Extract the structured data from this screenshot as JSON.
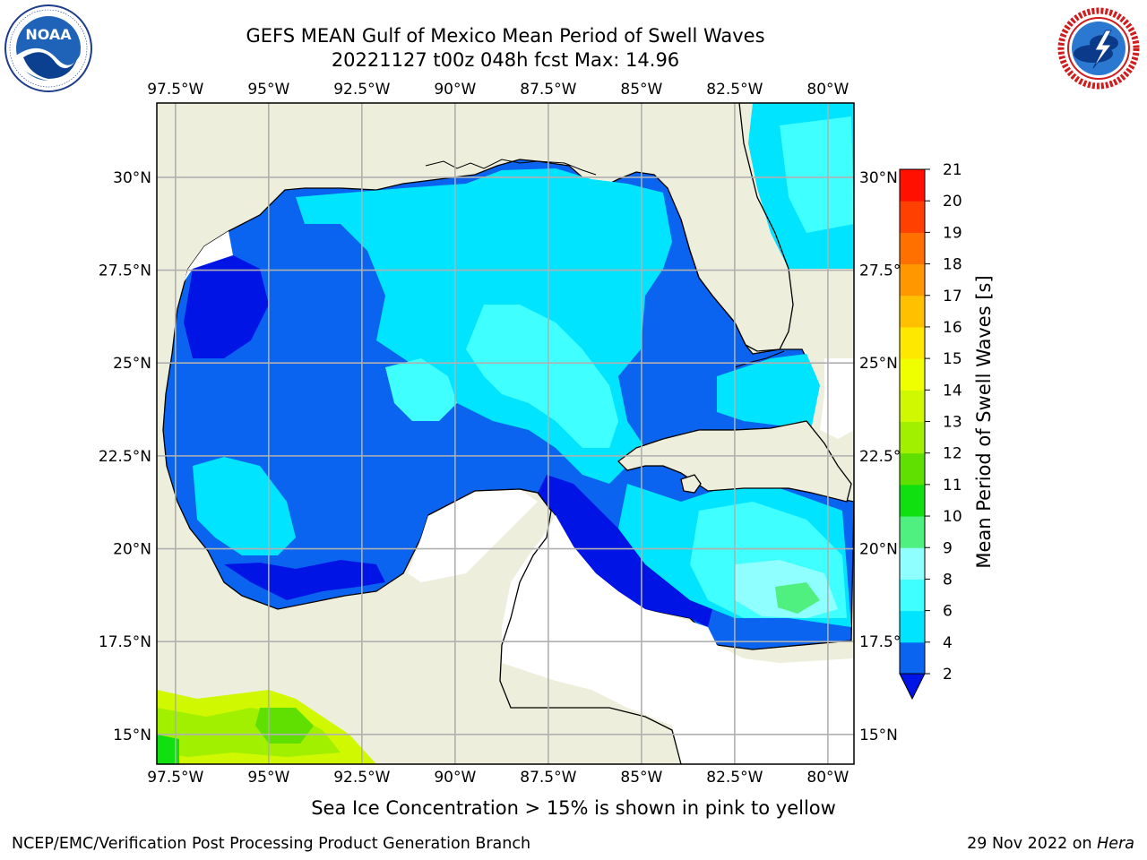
{
  "header": {
    "title_line1": "GEFS MEAN Gulf of Mexico Mean Period of Swell Waves",
    "title_line2": "20221127 t00z 048h fcst   Max: 14.96"
  },
  "logos": {
    "left": {
      "name": "noaa-logo",
      "text": "NOAA",
      "ring_text": "NATIONAL OCEANIC AND ATMOSPHERIC ADMINISTRATION · U.S. DEPARTMENT OF COMMERCE"
    },
    "right": {
      "name": "nws-logo",
      "ring_text": "NATIONAL WEATHER SERVICE"
    }
  },
  "map": {
    "lon_labels": [
      "97.5°W",
      "95°W",
      "92.5°W",
      "90°W",
      "87.5°W",
      "85°W",
      "82.5°W",
      "80°W"
    ],
    "lat_labels_left": [
      "30°N",
      "27.5°N",
      "25°N",
      "22.5°N",
      "20°N",
      "17.5°N",
      "15°N"
    ],
    "lat_labels_right": [
      "30°N",
      "27.5°N",
      "25°N",
      "22.5°N",
      "20°N",
      "17.5°N",
      "15°N"
    ],
    "lon_range": [
      -98,
      -79.3
    ],
    "lat_range": [
      14.2,
      32
    ]
  },
  "colorbar": {
    "label": "Mean Period of Swell Waves [s]",
    "ticks": [
      "2",
      "4",
      "6",
      "8",
      "9",
      "10",
      "11",
      "12",
      "13",
      "14",
      "15",
      "16",
      "17",
      "18",
      "19",
      "20",
      "21"
    ],
    "colors": [
      "#0a64f0",
      "#00e4ff",
      "#40ffff",
      "#90ffff",
      "#50f080",
      "#10e010",
      "#60e000",
      "#a0f000",
      "#d0f800",
      "#f0ff00",
      "#ffe800",
      "#ffc000",
      "#ff9800",
      "#ff7000",
      "#ff4000",
      "#ff1000"
    ],
    "extend_color": "#0014e6"
  },
  "colors": {
    "land": "#eeeedc",
    "ocean_missing": "#ffffff",
    "gridline": "#b0b0b0"
  },
  "footer": {
    "ice_note": "Sea Ice Concentration > 15% is shown in pink to yellow",
    "left": "NCEP/EMC/Verification Post Processing Product Generation Branch",
    "right_date": "29 Nov 2022 on ",
    "right_host": "Hera"
  }
}
